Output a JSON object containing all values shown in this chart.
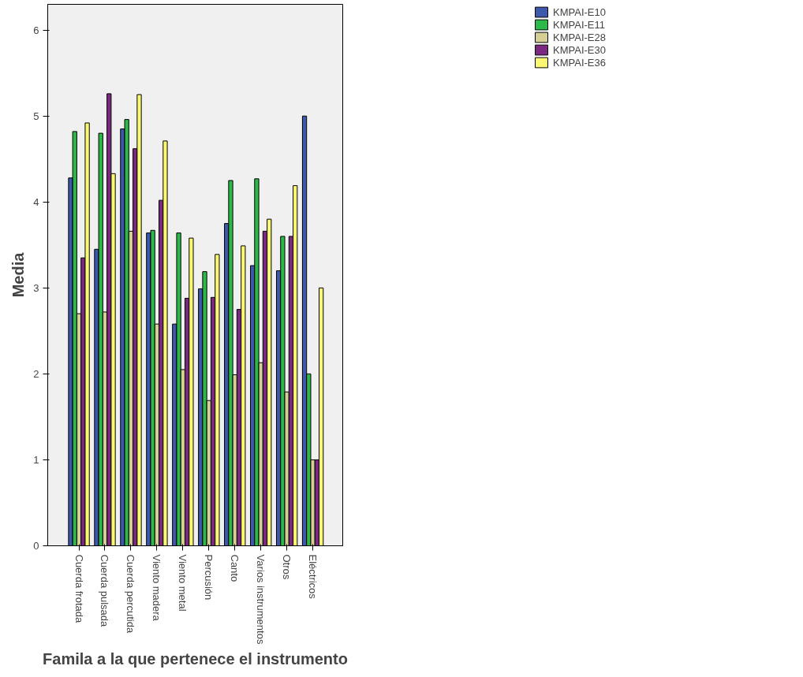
{
  "chart_data": {
    "type": "bar",
    "xlabel": "Famila a la que pertenece el instrumento",
    "ylabel": "Media",
    "categories": [
      "Cuerda frotada",
      "Cuerda pulsada",
      "Cuerda percutida",
      "Viento madera",
      "Viento metal",
      "Percusión",
      "Canto",
      "Varios instrumentos",
      "Otros",
      "Eléctricos"
    ],
    "series": [
      {
        "name": "KMPAI-E10",
        "color": "#3e58ac",
        "values": [
          4.28,
          3.45,
          4.85,
          3.64,
          2.58,
          2.99,
          3.75,
          3.26,
          3.2,
          5.0
        ]
      },
      {
        "name": "KMPAI-E11",
        "color": "#2fb84a",
        "values": [
          4.82,
          4.8,
          4.96,
          3.67,
          3.64,
          3.19,
          4.25,
          4.27,
          3.6,
          2.0
        ]
      },
      {
        "name": "KMPAI-E28",
        "color": "#d5cf95",
        "values": [
          2.7,
          2.72,
          3.66,
          2.58,
          2.05,
          1.69,
          1.99,
          2.13,
          1.79,
          1.0
        ]
      },
      {
        "name": "KMPAI-E30",
        "color": "#7b2880",
        "values": [
          3.35,
          5.26,
          4.62,
          4.02,
          2.88,
          2.89,
          2.75,
          3.66,
          3.6,
          1.0
        ]
      },
      {
        "name": "KMPAI-E36",
        "color": "#fbf873",
        "values": [
          4.92,
          4.33,
          5.25,
          4.71,
          3.58,
          3.39,
          3.49,
          3.8,
          4.19,
          3.0
        ]
      }
    ],
    "ylim": [
      0,
      6.3
    ],
    "yticks": [
      0,
      1,
      2,
      3,
      4,
      5,
      6
    ],
    "grid": false,
    "legend": "top right"
  }
}
